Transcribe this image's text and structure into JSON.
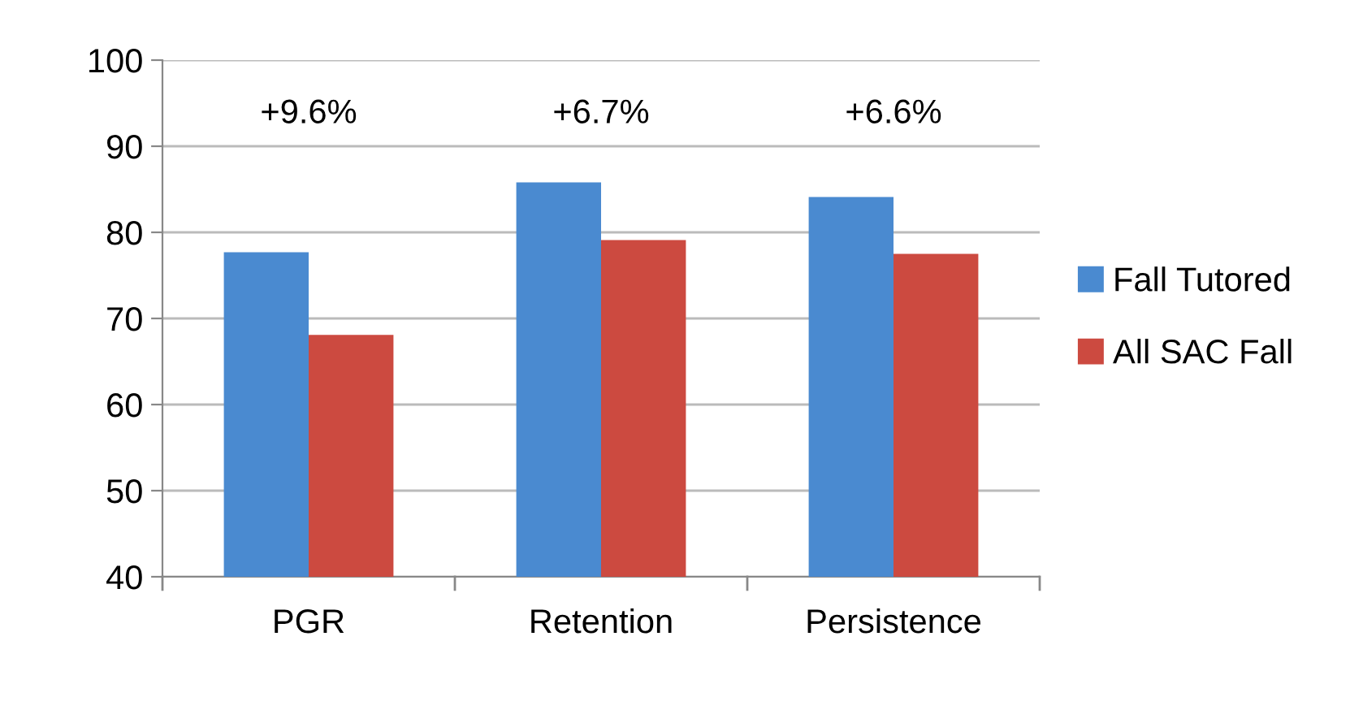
{
  "chart_data": {
    "type": "bar",
    "categories": [
      "PGR",
      "Retention",
      "Persistence"
    ],
    "series": [
      {
        "name": "Fall Tutored",
        "color": "#4a8ad0",
        "values": [
          77.7,
          85.8,
          84.1
        ]
      },
      {
        "name": "All SAC Fall",
        "color": "#cc4a40",
        "values": [
          68.1,
          79.1,
          77.5
        ]
      }
    ],
    "ylim": [
      40,
      100
    ],
    "yticks": [
      40,
      50,
      60,
      70,
      80,
      90,
      100
    ],
    "grid": "y",
    "legend": "right",
    "annotations": [
      "+9.6%",
      "+6.7%",
      "+6.6%"
    ]
  }
}
